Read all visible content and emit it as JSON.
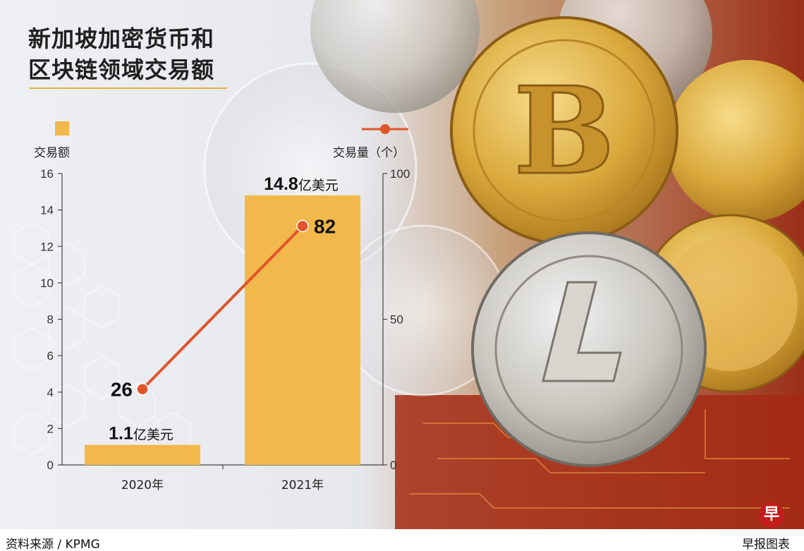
{
  "header": {
    "title_line1": "新加坡加密货币和",
    "title_line2": "区块链领域交易额"
  },
  "legend": {
    "bar_label": "交易额",
    "line_label": "交易量（个）"
  },
  "footer": {
    "source": "资料来源 / KPMG",
    "credit": "早报图表",
    "logo_char": "早"
  },
  "colors": {
    "bar": "#f2b84b",
    "line": "#e0552a",
    "title_rule": "#e2b13c"
  },
  "chart_data": {
    "type": "bar",
    "categories": [
      "2020年",
      "2021年"
    ],
    "series": [
      {
        "name": "交易额",
        "type": "bar",
        "axis": "left",
        "values": [
          1.1,
          14.8
        ],
        "value_labels": [
          "1.1",
          "14.8"
        ],
        "unit_suffix": "亿美元"
      },
      {
        "name": "交易量（个）",
        "type": "line",
        "axis": "right",
        "values": [
          26,
          82
        ],
        "value_labels": [
          "26",
          "82"
        ]
      }
    ],
    "left_axis": {
      "min": 0,
      "max": 16,
      "ticks": [
        "0",
        "2",
        "4",
        "6",
        "8",
        "10",
        "12",
        "14",
        "16"
      ]
    },
    "right_axis": {
      "min": 0,
      "max": 100,
      "ticks": [
        "0",
        "50",
        "100"
      ]
    },
    "legend_position": "top"
  }
}
